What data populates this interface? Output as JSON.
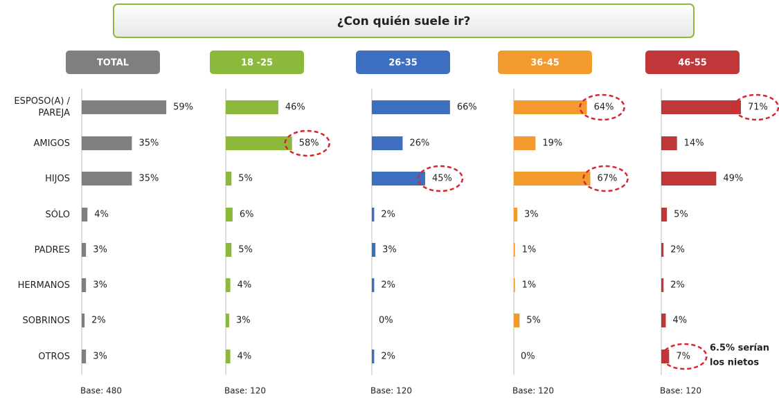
{
  "title": "¿Con quién suele ir?",
  "categories": [
    "ESPOSO(A) / PAREJA",
    "AMIGOS",
    "HIJOS",
    "SÓLO",
    "PADRES",
    "HERMANOS",
    "SOBRINOS",
    "OTROS"
  ],
  "chart_data": [
    {
      "type": "bar",
      "title": "TOTAL",
      "color": "#7f7f7f",
      "values": [
        59,
        35,
        35,
        4,
        3,
        3,
        2,
        3
      ],
      "value_labels": [
        "59%",
        "35%",
        "35%",
        "4%",
        "3%",
        "3%",
        "2%",
        "3%"
      ],
      "base": "Base: 480",
      "circled": []
    },
    {
      "type": "bar",
      "title": "18 -25",
      "color": "#8cb83c",
      "values": [
        46,
        58,
        5,
        6,
        5,
        4,
        3,
        4
      ],
      "value_labels": [
        "46%",
        "58%",
        "5%",
        "6%",
        "5%",
        "4%",
        "3%",
        "4%"
      ],
      "base": "Base: 120",
      "circled": [
        1
      ]
    },
    {
      "type": "bar",
      "title": "26-35",
      "color": "#3c6fbf",
      "values": [
        66,
        26,
        45,
        2,
        3,
        2,
        0,
        2
      ],
      "value_labels": [
        "66%",
        "26%",
        "45%",
        "2%",
        "3%",
        "2%",
        "0%",
        "2%"
      ],
      "base": "Base: 120",
      "circled": [
        2
      ]
    },
    {
      "type": "bar",
      "title": "36-45",
      "color": "#f39a2e",
      "values": [
        64,
        19,
        67,
        3,
        1,
        1,
        5,
        0
      ],
      "value_labels": [
        "64%",
        "19%",
        "67%",
        "3%",
        "1%",
        "1%",
        "5%",
        "0%"
      ],
      "base": "Base: 120",
      "circled": [
        0,
        2
      ]
    },
    {
      "type": "bar",
      "title": "46-55",
      "color": "#c0373a",
      "values": [
        71,
        14,
        49,
        5,
        2,
        2,
        4,
        7
      ],
      "value_labels": [
        "71%",
        "14%",
        "49%",
        "5%",
        "2%",
        "2%",
        "4%",
        "7%"
      ],
      "base": "Base: 120",
      "circled": [
        0,
        7
      ],
      "annotation": [
        "6.5% serían",
        "los nietos"
      ]
    }
  ]
}
